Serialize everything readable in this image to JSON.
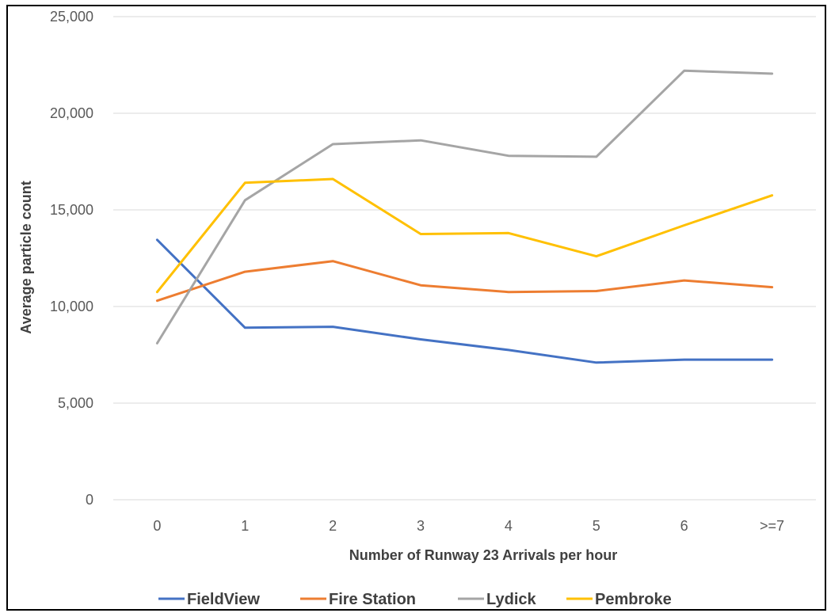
{
  "chart_data": {
    "type": "line",
    "xlabel": "Number of Runway 23 Arrivals per hour",
    "ylabel": "Average particle count",
    "categories": [
      "0",
      "1",
      "2",
      "3",
      "4",
      "5",
      "6",
      ">=7"
    ],
    "yticks": [
      "0",
      "5,000",
      "10,000",
      "15,000",
      "20,000",
      "25,000"
    ],
    "ylim": [
      0,
      25000
    ],
    "grid": true,
    "legend_position": "bottom",
    "series": [
      {
        "name": "FieldView",
        "color": "#4472C4",
        "values": [
          13450,
          8900,
          8950,
          8300,
          7750,
          7100,
          7250,
          7250
        ]
      },
      {
        "name": "Fire Station",
        "color": "#ED7D31",
        "values": [
          10300,
          11800,
          12350,
          11100,
          10750,
          10800,
          11350,
          11000
        ]
      },
      {
        "name": "Lydick",
        "color": "#A5A5A5",
        "values": [
          8100,
          15500,
          18400,
          18600,
          17800,
          17750,
          22200,
          22050
        ]
      },
      {
        "name": "Pembroke",
        "color": "#FFC000",
        "values": [
          10750,
          16400,
          16600,
          13750,
          13800,
          12600,
          14200,
          15750
        ]
      }
    ]
  }
}
